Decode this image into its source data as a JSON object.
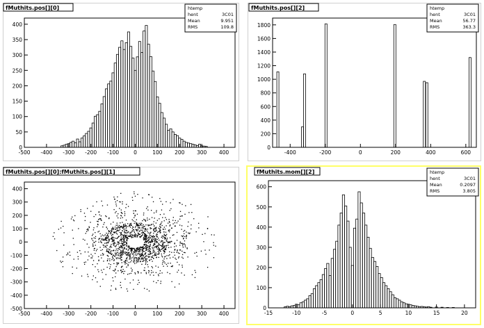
{
  "chart_data": [
    {
      "type": "bar",
      "title": "fMuthits.pos[][0]",
      "stats": {
        "name": "htemp",
        "entries_label": "hent",
        "entries": "3C01",
        "mean_label": "Mean",
        "mean": "9.951",
        "rms_label": "RMS",
        "rms": "109.8"
      },
      "xlim": [
        -500,
        450
      ],
      "ylim": [
        0,
        420
      ],
      "xticks": [
        -500,
        -400,
        -300,
        -200,
        -100,
        0,
        100,
        200,
        300,
        400
      ],
      "yticks": [
        0,
        50,
        100,
        150,
        200,
        250,
        300,
        350,
        400
      ],
      "bin_width": 10,
      "x": [
        -330,
        -320,
        -310,
        -300,
        -290,
        -280,
        -270,
        -260,
        -250,
        -240,
        -230,
        -220,
        -210,
        -200,
        -190,
        -180,
        -170,
        -160,
        -150,
        -140,
        -130,
        -120,
        -110,
        -100,
        -90,
        -80,
        -70,
        -60,
        -50,
        -40,
        -30,
        -20,
        -10,
        0,
        10,
        20,
        30,
        40,
        50,
        60,
        70,
        80,
        90,
        100,
        110,
        120,
        130,
        140,
        150,
        160,
        170,
        180,
        190,
        200,
        210,
        220,
        230,
        240,
        250,
        260,
        270,
        280,
        290,
        300,
        310,
        320
      ],
      "values": [
        5,
        7,
        10,
        12,
        16,
        20,
        15,
        27,
        18,
        30,
        37,
        45,
        52,
        63,
        79,
        101,
        106,
        117,
        141,
        165,
        190,
        206,
        215,
        242,
        274,
        302,
        325,
        346,
        318,
        340,
        375,
        328,
        290,
        250,
        294,
        344,
        308,
        378,
        396,
        335,
        295,
        248,
        214,
        164,
        143,
        113,
        95,
        75,
        55,
        60,
        50,
        42,
        38,
        30,
        26,
        20,
        16,
        14,
        12,
        10,
        8,
        6,
        10,
        5,
        4,
        3
      ]
    },
    {
      "type": "bar",
      "title": "fMuthits.pos[][2]",
      "stats": {
        "name": "htemp",
        "entries_label": "hent",
        "entries": "3C01",
        "mean_label": "Mean",
        "mean": "56.77",
        "rms_label": "RMS",
        "rms": "363.3"
      },
      "xlim": [
        -500,
        660
      ],
      "ylim": [
        0,
        1900
      ],
      "xticks": [
        -400,
        -200,
        0,
        200,
        400,
        600
      ],
      "yticks": [
        0,
        200,
        400,
        600,
        800,
        1000,
        1200,
        1400,
        1600,
        1800
      ],
      "bin_width": 12,
      "x": [
        -470,
        -330,
        -318,
        -196,
        196,
        364,
        378,
        624
      ],
      "values": [
        1110,
        300,
        1080,
        1815,
        1805,
        970,
        950,
        1320
      ]
    },
    {
      "type": "scatter",
      "title": "fMuthits.pos[][0]:fMuthits.pos[][1]",
      "xlim": [
        -500,
        450
      ],
      "ylim": [
        -500,
        450
      ],
      "xticks": [
        -500,
        -400,
        -300,
        -200,
        -100,
        0,
        100,
        200,
        300,
        400
      ],
      "yticks": [
        -500,
        -400,
        -300,
        -200,
        -100,
        0,
        100,
        200,
        300,
        400
      ],
      "point_count": 3001
    },
    {
      "type": "bar",
      "title": "fMuthits.mom[][2]",
      "stats": {
        "name": "htemp",
        "entries_label": "hent",
        "entries": "3C01",
        "mean_label": "Mean",
        "mean": "0.2097",
        "rms_label": "RMS",
        "rms": "3.805"
      },
      "xlim": [
        -15,
        22
      ],
      "ylim": [
        0,
        630
      ],
      "xticks": [
        -15,
        -10,
        -5,
        0,
        5,
        10,
        15,
        20
      ],
      "yticks": [
        0,
        100,
        200,
        300,
        400,
        500,
        600
      ],
      "bin_width": 0.4,
      "x": [
        -12,
        -11.6,
        -11.2,
        -10.8,
        -10.4,
        -10,
        -9.6,
        -9.2,
        -8.8,
        -8.4,
        -8,
        -7.6,
        -7.2,
        -6.8,
        -6.4,
        -6,
        -5.6,
        -5.2,
        -4.8,
        -4.4,
        -4,
        -3.6,
        -3.2,
        -2.8,
        -2.4,
        -2,
        -1.6,
        -1.2,
        -0.8,
        -0.4,
        0,
        0.4,
        0.8,
        1.2,
        1.6,
        2,
        2.4,
        2.8,
        3.2,
        3.6,
        4,
        4.4,
        4.8,
        5.2,
        5.6,
        6,
        6.4,
        6.8,
        7.2,
        7.6,
        8,
        8.4,
        8.8,
        9.2,
        9.6,
        10,
        10.4,
        10.8,
        11.2,
        11.6,
        12,
        12.4,
        12.8,
        13.2,
        13.6,
        14,
        15,
        16,
        17,
        18
      ],
      "values": [
        5,
        8,
        6,
        10,
        12,
        18,
        15,
        25,
        30,
        38,
        45,
        60,
        70,
        95,
        110,
        125,
        140,
        165,
        195,
        220,
        160,
        245,
        290,
        330,
        410,
        470,
        560,
        505,
        430,
        300,
        210,
        395,
        440,
        575,
        520,
        470,
        410,
        350,
        295,
        250,
        230,
        205,
        170,
        150,
        125,
        110,
        95,
        80,
        65,
        50,
        45,
        38,
        30,
        25,
        20,
        18,
        15,
        12,
        10,
        8,
        6,
        7,
        5,
        4,
        6,
        3,
        4,
        3,
        2,
        2
      ]
    }
  ]
}
